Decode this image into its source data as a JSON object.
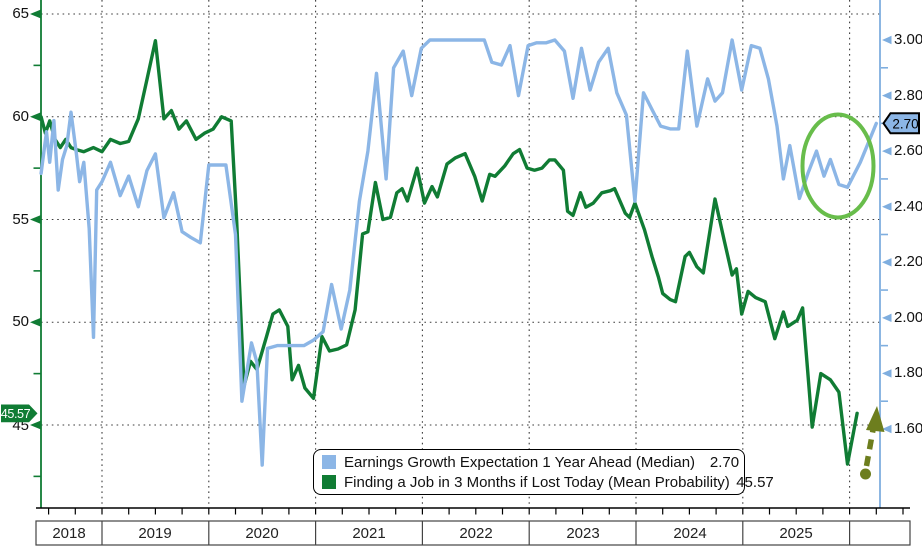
{
  "axes": {
    "left": {
      "labels": [
        "65",
        "60",
        "55",
        "50",
        "45"
      ],
      "color": "#107C34",
      "badge": "45.57"
    },
    "right": {
      "labels": [
        "3.00",
        "2.80",
        "2.60",
        "2.40",
        "2.20",
        "2.00",
        "1.80",
        "1.60"
      ],
      "color": "#7FAEDF",
      "badge": "2.70"
    },
    "x": {
      "years": [
        "2018",
        "2019",
        "2020",
        "2021",
        "2022",
        "2023",
        "2024",
        "2025"
      ]
    }
  },
  "legend": {
    "items": [
      {
        "label": "Earnings Growth Expectation 1 Year Ahead (Median)",
        "value": "2.70",
        "color": "#8CB6E6"
      },
      {
        "label": "Finding a Job in 3 Months if Lost Today (Mean Probability)",
        "value": "45.57",
        "color": "#107C34"
      }
    ]
  },
  "chart_data": {
    "type": "line",
    "title": "",
    "xlabel": "",
    "ylabel_left": "Finding a Job in 3 Months if Lost Today (Mean Probability)",
    "ylabel_right": "Earnings Growth Expectation 1 Year Ahead (Median)",
    "left_axis": {
      "ticks": [
        65,
        60,
        55,
        50,
        45
      ],
      "minor_ticks": [
        62.5,
        57.5,
        52.5,
        47.5,
        42.5
      ]
    },
    "right_axis": {
      "ticks": [
        3.0,
        2.8,
        2.6,
        2.4,
        2.2,
        2.0,
        1.8,
        1.6
      ],
      "minor_ticks": [
        2.9,
        2.7,
        2.5,
        2.3,
        2.1,
        1.9,
        1.7
      ]
    },
    "x_axis": {
      "years": [
        2018,
        2019,
        2020,
        2021,
        2022,
        2023,
        2024,
        2025
      ],
      "grid": "dotted"
    },
    "legend_position": "bottom-center",
    "series": [
      {
        "name": "Finding a Job in 3 Months if Lost Today (Mean Probability)",
        "axis": "left",
        "color": "#107C34",
        "latest": 45.57,
        "points": [
          [
            2018.43,
            60.0
          ],
          [
            2018.47,
            59.2
          ],
          [
            2018.51,
            59.8
          ],
          [
            2018.56,
            58.9
          ],
          [
            2018.61,
            58.5
          ],
          [
            2018.66,
            58.9
          ],
          [
            2018.71,
            58.5
          ],
          [
            2018.76,
            58.4
          ],
          [
            2018.83,
            58.3
          ],
          [
            2018.92,
            58.5
          ],
          [
            2019.0,
            58.3
          ],
          [
            2019.08,
            58.9
          ],
          [
            2019.17,
            58.7
          ],
          [
            2019.25,
            58.8
          ],
          [
            2019.34,
            59.9
          ],
          [
            2019.42,
            61.8
          ],
          [
            2019.5,
            63.7
          ],
          [
            2019.58,
            59.9
          ],
          [
            2019.65,
            60.3
          ],
          [
            2019.72,
            59.4
          ],
          [
            2019.79,
            59.8
          ],
          [
            2019.88,
            58.9
          ],
          [
            2019.96,
            59.2
          ],
          [
            2020.04,
            59.4
          ],
          [
            2020.12,
            60.0
          ],
          [
            2020.21,
            59.8
          ],
          [
            2020.26,
            55.0
          ],
          [
            2020.33,
            46.9
          ],
          [
            2020.39,
            48.1
          ],
          [
            2020.45,
            47.7
          ],
          [
            2020.54,
            49.3
          ],
          [
            2020.6,
            50.4
          ],
          [
            2020.66,
            50.6
          ],
          [
            2020.74,
            49.8
          ],
          [
            2020.78,
            47.2
          ],
          [
            2020.84,
            47.9
          ],
          [
            2020.9,
            46.8
          ],
          [
            2020.98,
            46.3
          ],
          [
            2021.06,
            49.3
          ],
          [
            2021.13,
            48.6
          ],
          [
            2021.21,
            48.7
          ],
          [
            2021.29,
            48.9
          ],
          [
            2021.37,
            50.6
          ],
          [
            2021.44,
            54.3
          ],
          [
            2021.49,
            54.4
          ],
          [
            2021.56,
            56.8
          ],
          [
            2021.63,
            55.0
          ],
          [
            2021.7,
            55.1
          ],
          [
            2021.76,
            56.3
          ],
          [
            2021.81,
            56.5
          ],
          [
            2021.86,
            55.9
          ],
          [
            2021.95,
            57.5
          ],
          [
            2022.02,
            55.8
          ],
          [
            2022.09,
            56.6
          ],
          [
            2022.14,
            56.1
          ],
          [
            2022.23,
            57.7
          ],
          [
            2022.31,
            58.0
          ],
          [
            2022.4,
            58.2
          ],
          [
            2022.49,
            57.1
          ],
          [
            2022.56,
            55.9
          ],
          [
            2022.63,
            57.2
          ],
          [
            2022.68,
            57.1
          ],
          [
            2022.77,
            57.6
          ],
          [
            2022.85,
            58.2
          ],
          [
            2022.91,
            58.4
          ],
          [
            2022.98,
            57.5
          ],
          [
            2023.05,
            57.4
          ],
          [
            2023.12,
            57.5
          ],
          [
            2023.19,
            57.9
          ],
          [
            2023.24,
            57.9
          ],
          [
            2023.32,
            57.4
          ],
          [
            2023.36,
            55.4
          ],
          [
            2023.41,
            55.2
          ],
          [
            2023.48,
            56.3
          ],
          [
            2023.53,
            55.6
          ],
          [
            2023.6,
            55.8
          ],
          [
            2023.68,
            56.3
          ],
          [
            2023.76,
            56.4
          ],
          [
            2023.8,
            56.5
          ],
          [
            2023.9,
            55.3
          ],
          [
            2023.94,
            55.1
          ],
          [
            2023.99,
            55.8
          ],
          [
            2024.08,
            54.5
          ],
          [
            2024.15,
            53.2
          ],
          [
            2024.21,
            52.2
          ],
          [
            2024.25,
            51.4
          ],
          [
            2024.32,
            51.1
          ],
          [
            2024.37,
            51.0
          ],
          [
            2024.46,
            53.2
          ],
          [
            2024.5,
            53.4
          ],
          [
            2024.57,
            52.7
          ],
          [
            2024.63,
            52.4
          ],
          [
            2024.74,
            56.0
          ],
          [
            2024.83,
            53.9
          ],
          [
            2024.9,
            52.3
          ],
          [
            2024.94,
            52.6
          ],
          [
            2024.99,
            50.4
          ],
          [
            2025.05,
            51.5
          ],
          [
            2025.12,
            51.2
          ],
          [
            2025.21,
            51.0
          ],
          [
            2025.3,
            49.2
          ],
          [
            2025.38,
            50.5
          ],
          [
            2025.42,
            49.8
          ],
          [
            2025.51,
            50.1
          ],
          [
            2025.56,
            50.7
          ],
          [
            2025.65,
            44.9
          ],
          [
            2025.73,
            47.5
          ],
          [
            2025.82,
            47.2
          ],
          [
            2025.9,
            46.6
          ],
          [
            2025.98,
            43.1
          ],
          [
            2026.07,
            45.57
          ]
        ]
      },
      {
        "name": "Earnings Growth Expectation 1 Year Ahead (Median)",
        "axis": "right",
        "color": "#8CB6E6",
        "latest": 2.7,
        "points": [
          [
            2018.43,
            2.52
          ],
          [
            2018.48,
            2.67
          ],
          [
            2018.51,
            2.56
          ],
          [
            2018.55,
            2.71
          ],
          [
            2018.59,
            2.46
          ],
          [
            2018.63,
            2.57
          ],
          [
            2018.67,
            2.62
          ],
          [
            2018.71,
            2.74
          ],
          [
            2018.76,
            2.59
          ],
          [
            2018.79,
            2.49
          ],
          [
            2018.83,
            2.56
          ],
          [
            2018.88,
            2.32
          ],
          [
            2018.92,
            1.93
          ],
          [
            2018.95,
            2.46
          ],
          [
            2019.0,
            2.49
          ],
          [
            2019.08,
            2.56
          ],
          [
            2019.17,
            2.44
          ],
          [
            2019.25,
            2.51
          ],
          [
            2019.34,
            2.4
          ],
          [
            2019.42,
            2.53
          ],
          [
            2019.5,
            2.59
          ],
          [
            2019.58,
            2.36
          ],
          [
            2019.67,
            2.45
          ],
          [
            2019.75,
            2.31
          ],
          [
            2019.83,
            2.29
          ],
          [
            2019.92,
            2.27
          ],
          [
            2020.0,
            2.55
          ],
          [
            2020.08,
            2.55
          ],
          [
            2020.16,
            2.55
          ],
          [
            2020.25,
            2.3
          ],
          [
            2020.31,
            1.7
          ],
          [
            2020.4,
            1.91
          ],
          [
            2020.45,
            1.84
          ],
          [
            2020.5,
            1.47
          ],
          [
            2020.55,
            1.89
          ],
          [
            2020.64,
            1.9
          ],
          [
            2020.72,
            1.9
          ],
          [
            2020.81,
            1.9
          ],
          [
            2020.89,
            1.9
          ],
          [
            2020.98,
            1.92
          ],
          [
            2021.07,
            1.95
          ],
          [
            2021.15,
            2.12
          ],
          [
            2021.24,
            1.96
          ],
          [
            2021.32,
            2.1
          ],
          [
            2021.41,
            2.42
          ],
          [
            2021.49,
            2.6
          ],
          [
            2021.57,
            2.88
          ],
          [
            2021.66,
            2.5
          ],
          [
            2021.73,
            2.9
          ],
          [
            2021.82,
            2.96
          ],
          [
            2021.9,
            2.8
          ],
          [
            2021.99,
            2.97
          ],
          [
            2022.07,
            3.0
          ],
          [
            2022.16,
            3.0
          ],
          [
            2022.24,
            3.0
          ],
          [
            2022.32,
            3.0
          ],
          [
            2022.41,
            3.0
          ],
          [
            2022.49,
            3.0
          ],
          [
            2022.58,
            3.0
          ],
          [
            2022.65,
            2.92
          ],
          [
            2022.74,
            2.91
          ],
          [
            2022.82,
            2.98
          ],
          [
            2022.9,
            2.8
          ],
          [
            2022.99,
            2.98
          ],
          [
            2023.07,
            2.99
          ],
          [
            2023.16,
            2.99
          ],
          [
            2023.24,
            3.0
          ],
          [
            2023.33,
            2.96
          ],
          [
            2023.41,
            2.79
          ],
          [
            2023.49,
            2.97
          ],
          [
            2023.57,
            2.82
          ],
          [
            2023.65,
            2.92
          ],
          [
            2023.74,
            2.97
          ],
          [
            2023.82,
            2.81
          ],
          [
            2023.91,
            2.73
          ],
          [
            2023.99,
            2.42
          ],
          [
            2024.07,
            2.81
          ],
          [
            2024.15,
            2.75
          ],
          [
            2024.23,
            2.69
          ],
          [
            2024.32,
            2.68
          ],
          [
            2024.4,
            2.68
          ],
          [
            2024.48,
            2.96
          ],
          [
            2024.57,
            2.69
          ],
          [
            2024.67,
            2.86
          ],
          [
            2024.74,
            2.78
          ],
          [
            2024.81,
            2.81
          ],
          [
            2024.9,
            3.0
          ],
          [
            2024.99,
            2.82
          ],
          [
            2025.08,
            2.98
          ],
          [
            2025.16,
            2.97
          ],
          [
            2025.24,
            2.86
          ],
          [
            2025.32,
            2.69
          ],
          [
            2025.38,
            2.5
          ],
          [
            2025.44,
            2.62
          ],
          [
            2025.53,
            2.43
          ],
          [
            2025.61,
            2.52
          ],
          [
            2025.69,
            2.6
          ],
          [
            2025.76,
            2.51
          ],
          [
            2025.82,
            2.57
          ],
          [
            2025.9,
            2.48
          ],
          [
            2025.98,
            2.47
          ],
          [
            2026.1,
            2.56
          ],
          [
            2026.25,
            2.7
          ]
        ]
      }
    ],
    "annotations": [
      {
        "type": "ellipse",
        "color": "#68BD4B",
        "note": "highlight circle on recent earnings-expectation rebound"
      },
      {
        "type": "dashed-arrow-up",
        "color": "#6D7E1E",
        "note": "rebound arrow at latest job-finding probability"
      }
    ]
  }
}
